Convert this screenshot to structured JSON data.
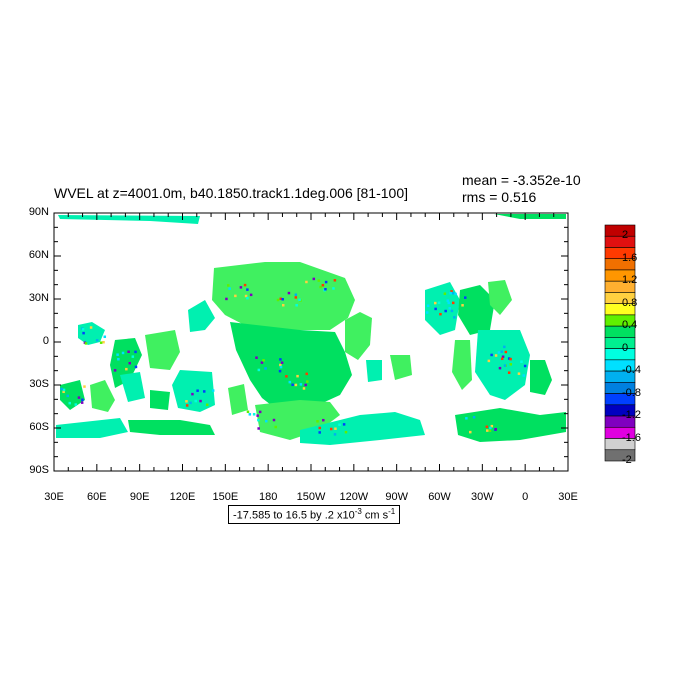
{
  "chart_data": {
    "type": "heatmap",
    "title": "WVEL at z=4001.0m, b40.1850.track1.1deg.006 [81-100]",
    "stats": {
      "mean": "mean = -3.352e-10",
      "rms": "rms = 0.516"
    },
    "x_ticks": [
      "30E",
      "60E",
      "90E",
      "120E",
      "150E",
      "180",
      "150W",
      "120W",
      "90W",
      "60W",
      "30W",
      "0",
      "30E"
    ],
    "y_ticks": [
      "90N",
      "60N",
      "30N",
      "0",
      "30S",
      "60S",
      "90S"
    ],
    "xlim": [
      30,
      390
    ],
    "ylim": [
      -90,
      90
    ],
    "range_label": {
      "text": "-17.585 to 16.5 by .2 x10",
      "exp": "-3",
      "unit": " cm s",
      "unit_exp": "-1"
    },
    "colorbar": {
      "labels": [
        "2",
        "1.6",
        "1.2",
        "0.8",
        "0.4",
        "0",
        "-0.4",
        "-0.8",
        "-1.2",
        "-1.6",
        "-2"
      ],
      "colors": [
        "#c00000",
        "#e01010",
        "#ff3a00",
        "#f07000",
        "#ff9600",
        "#ffb030",
        "#ffd040",
        "#ffff20",
        "#60f000",
        "#00e060",
        "#00f090",
        "#00ffe0",
        "#00e0ff",
        "#00b0f0",
        "#0080e0",
        "#0040ff",
        "#0000c0",
        "#8000c0",
        "#e000e0",
        "#d0d0d0",
        "#707070"
      ]
    }
  }
}
